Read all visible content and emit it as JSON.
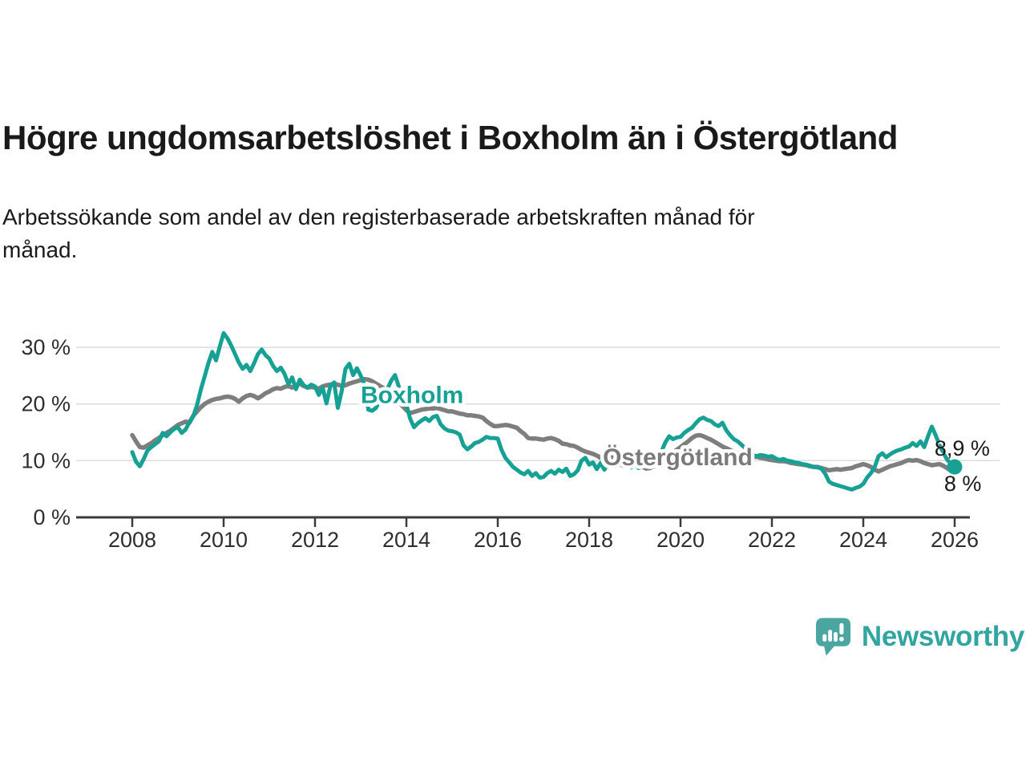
{
  "header": {
    "title": "Högre ungdomsarbetslöshet i Boxholm än i Östergötland",
    "subtitle": "Arbetssökande som andel av den registerbaserade arbetskraften månad för\nmånad."
  },
  "chart_data": {
    "type": "line",
    "title": "Högre ungdomsarbetslöshet i Boxholm än i Östergötland",
    "xlabel": "",
    "ylabel": "",
    "x_axis": {
      "ticks": [
        2008,
        2010,
        2012,
        2014,
        2016,
        2018,
        2020,
        2022,
        2024,
        2026
      ],
      "labels": [
        "2008",
        "2010",
        "2012",
        "2014",
        "2016",
        "2018",
        "2020",
        "2022",
        "2024",
        "2026"
      ],
      "range": [
        2007.8,
        2026.4
      ]
    },
    "y_axis": {
      "ticks": [
        0,
        10,
        20,
        30
      ],
      "labels": [
        "0 %",
        "10 %",
        "20 %",
        "30 %"
      ],
      "gridlines": [
        10,
        20,
        30
      ],
      "range": [
        0,
        34
      ],
      "grid_color": "#DBDBDB",
      "axis_color": "#3C3C3C",
      "tick_label_color": "#2E2E2E"
    },
    "series": [
      {
        "id": "boxholm",
        "name": "Boxholm",
        "color": "#17A194",
        "line_width": 5,
        "start_year": 2008,
        "points_per_year": 12,
        "dash": {
          "from_index": 211,
          "pattern": "8 6"
        },
        "end_dot": true,
        "end_label": {
          "text": "8,9 %",
          "x": 2025.56,
          "y": 10.9
        },
        "values": [
          11.5,
          9.8,
          9.0,
          10.3,
          11.8,
          12.4,
          12.9,
          13.4,
          14.9,
          14.3,
          15.0,
          15.6,
          15.9,
          14.9,
          15.5,
          16.8,
          17.8,
          19.8,
          22.5,
          24.8,
          27.2,
          29.2,
          27.7,
          30.2,
          32.5,
          31.6,
          30.3,
          28.8,
          27.3,
          26.2,
          26.9,
          25.8,
          27.2,
          28.8,
          29.6,
          28.6,
          28.0,
          26.7,
          25.8,
          26.4,
          25.3,
          23.5,
          24.7,
          22.6,
          24.3,
          23.3,
          22.9,
          23.4,
          23.1,
          21.6,
          22.9,
          20.1,
          23.1,
          23.8,
          19.3,
          22.2,
          26.2,
          27.1,
          25.1,
          26.3,
          25.0,
          23.4,
          19.0,
          18.8,
          19.3,
          20.6,
          21.6,
          22.6,
          24.1,
          25.1,
          23.1,
          21.1,
          19.9,
          17.4,
          15.9,
          16.6,
          17.1,
          17.5,
          17.0,
          17.7,
          17.9,
          16.4,
          15.7,
          15.3,
          15.2,
          15.0,
          14.6,
          12.7,
          12.0,
          12.5,
          13.1,
          13.3,
          13.7,
          14.2,
          14.0,
          14.0,
          13.9,
          11.9,
          10.5,
          9.7,
          8.9,
          8.4,
          7.9,
          7.6,
          8.2,
          7.3,
          7.8,
          7.0,
          7.1,
          7.8,
          8.2,
          7.7,
          8.4,
          8.0,
          8.6,
          7.3,
          7.6,
          8.3,
          10.0,
          10.5,
          9.3,
          9.7,
          8.5,
          9.6,
          8.4,
          9.6,
          9.1,
          9.8,
          9.4,
          9.0,
          9.4,
          8.8,
          9.4,
          8.7,
          9.0,
          9.3,
          8.8,
          9.5,
          9.9,
          11.6,
          13.2,
          14.3,
          13.8,
          14.1,
          14.2,
          14.9,
          15.4,
          15.8,
          16.6,
          17.3,
          17.6,
          17.2,
          17.0,
          16.4,
          16.1,
          16.7,
          15.4,
          14.5,
          13.8,
          13.4,
          12.8,
          12.2,
          11.6,
          11.0,
          10.8,
          11.0,
          10.9,
          10.7,
          10.8,
          10.4,
          10.1,
          10.3,
          10.0,
          9.9,
          9.7,
          9.6,
          9.4,
          9.3,
          9.1,
          8.9,
          8.8,
          8.6,
          7.7,
          6.3,
          5.9,
          5.7,
          5.5,
          5.3,
          5.1,
          4.9,
          5.2,
          5.4,
          5.9,
          7.0,
          7.8,
          8.9,
          10.8,
          11.3,
          10.6,
          11.1,
          11.5,
          11.8,
          12.0,
          12.3,
          12.5,
          13.1,
          12.6,
          13.4,
          12.4,
          14.3,
          16.0,
          14.5,
          12.8,
          11.4,
          10.2,
          9.4,
          8.9
        ]
      },
      {
        "id": "ostergotland",
        "name": "Östergötland",
        "color": "#7E7E7E",
        "line_width": 5.5,
        "start_year": 2008,
        "points_per_year": 12,
        "end_dot": false,
        "end_label": {
          "text": "8 %",
          "x": 2025.77,
          "y": 4.7
        },
        "values": [
          14.5,
          13.4,
          12.4,
          12.3,
          12.7,
          13.1,
          13.6,
          14.0,
          14.5,
          14.9,
          15.3,
          15.8,
          16.3,
          16.6,
          16.9,
          16.7,
          17.9,
          18.7,
          19.4,
          20.0,
          20.4,
          20.7,
          20.9,
          21.0,
          21.2,
          21.3,
          21.2,
          20.9,
          20.4,
          21.0,
          21.4,
          21.6,
          21.4,
          21.0,
          21.4,
          21.9,
          22.2,
          22.6,
          22.8,
          22.7,
          23.0,
          23.2,
          22.9,
          23.3,
          23.6,
          23.2,
          22.9,
          23.0,
          22.9,
          22.7,
          23.1,
          23.3,
          23.4,
          23.6,
          23.4,
          23.2,
          23.3,
          23.6,
          23.8,
          24.0,
          24.2,
          24.4,
          24.3,
          24.0,
          23.6,
          23.2,
          22.8,
          22.3,
          21.8,
          21.2,
          20.5,
          19.6,
          18.9,
          18.4,
          18.6,
          18.8,
          19.0,
          19.1,
          19.2,
          19.2,
          19.3,
          19.1,
          18.9,
          18.7,
          18.7,
          18.5,
          18.3,
          18.2,
          18.0,
          18.0,
          17.9,
          17.8,
          17.6,
          17.0,
          16.5,
          16.1,
          16.1,
          16.2,
          16.3,
          16.2,
          16.0,
          15.8,
          15.2,
          14.7,
          14.0,
          13.9,
          13.9,
          13.8,
          13.7,
          13.9,
          14.0,
          13.8,
          13.5,
          13.0,
          12.9,
          12.7,
          12.6,
          12.3,
          11.9,
          11.6,
          11.4,
          11.2,
          10.9,
          10.5,
          10.2,
          10.4,
          10.6,
          10.7,
          10.5,
          10.4,
          10.6,
          10.3,
          9.9,
          9.4,
          8.9,
          8.6,
          8.7,
          9.0,
          9.4,
          9.9,
          10.4,
          10.9,
          11.4,
          11.9,
          12.4,
          12.9,
          13.4,
          14.0,
          14.4,
          14.5,
          14.3,
          14.0,
          13.7,
          13.3,
          12.9,
          12.5,
          12.2,
          11.9,
          11.6,
          11.3,
          11.0,
          10.8,
          10.7,
          10.6,
          10.7,
          10.5,
          10.4,
          10.2,
          10.1,
          10.0,
          9.9,
          9.9,
          9.8,
          9.6,
          9.5,
          9.4,
          9.3,
          9.2,
          9.0,
          8.9,
          8.9,
          8.7,
          8.5,
          8.3,
          8.4,
          8.5,
          8.4,
          8.5,
          8.6,
          8.7,
          9.0,
          9.2,
          9.4,
          9.2,
          8.9,
          8.4,
          8.1,
          8.4,
          8.7,
          9.0,
          9.2,
          9.4,
          9.6,
          9.9,
          10.1,
          10.0,
          10.1,
          9.9,
          9.6,
          9.4,
          9.2,
          9.3,
          9.4,
          9.1,
          8.7,
          8.2,
          8.0
        ]
      }
    ],
    "labels": [
      {
        "id": "boxholm",
        "text": "Boxholm",
        "x": 2013.0,
        "y": 20.2,
        "color": "#17A194"
      },
      {
        "id": "ostergotland",
        "text": "Östergötland",
        "x": 2018.3,
        "y": 9.2,
        "color": "#7A7A7A"
      }
    ],
    "end_label_color": "#1A1A1A",
    "legend_position": "inline-labels",
    "grid": "horizontal-only"
  },
  "footer": {
    "brand": "Newsworthy",
    "brand_color": "#33A5A1",
    "bubble_color": "#4BA5A1"
  }
}
